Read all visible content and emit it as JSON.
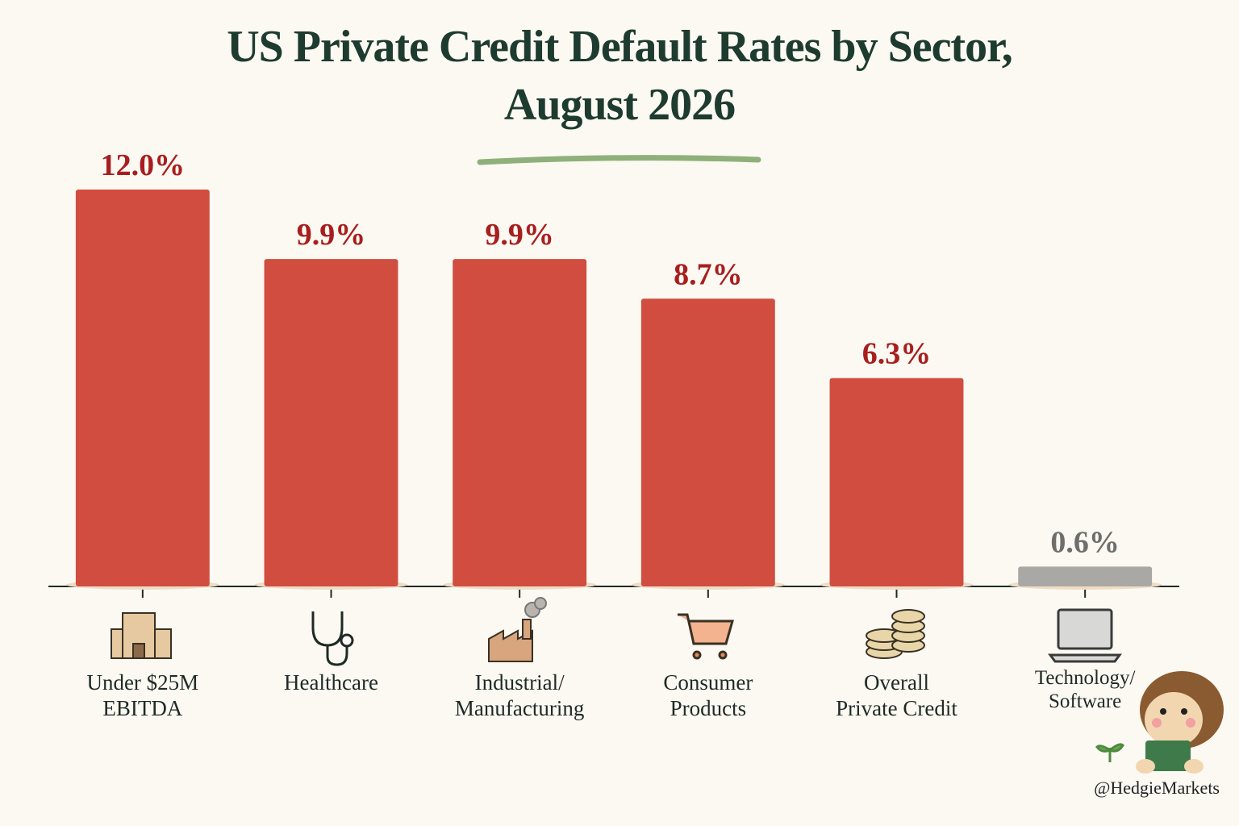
{
  "chart_data": {
    "type": "bar",
    "title": "US Private Credit Default Rates by Sector,\nAugust 2026",
    "categories": [
      "Under $25M\nEBITDA",
      "Healthcare",
      "Industrial/\nManufacturing",
      "Consumer\nProducts",
      "Overall\nPrivate Credit",
      "Technology/\nSoftware"
    ],
    "values": [
      12.0,
      9.9,
      9.9,
      8.7,
      6.3,
      0.6
    ],
    "value_labels": [
      "12.0%",
      "9.9%",
      "9.9%",
      "8.7%",
      "6.3%",
      "0.6%"
    ],
    "colors": [
      "#d04d40",
      "#d04d40",
      "#d04d40",
      "#d04d40",
      "#d04d40",
      "#a9a8a4"
    ],
    "label_colors": [
      "#a81e1e",
      "#a81e1e",
      "#a81e1e",
      "#a81e1e",
      "#a81e1e",
      "#6e6e6c"
    ],
    "ylim": [
      0,
      13
    ],
    "attribution": "@HedgieMarkets"
  }
}
